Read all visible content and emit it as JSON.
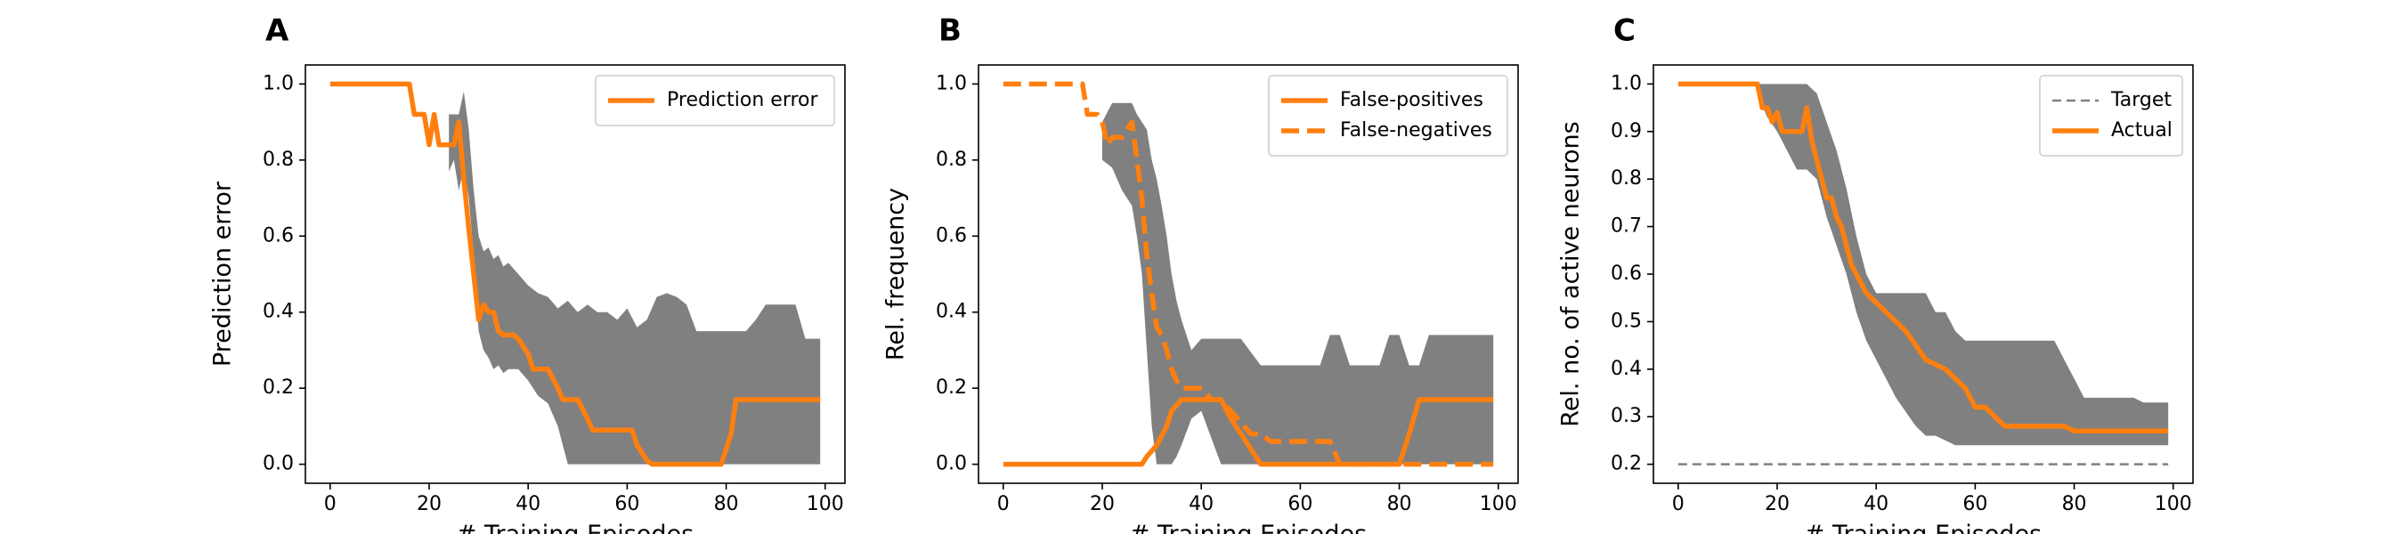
{
  "colors": {
    "line": "#ff7f0e",
    "band": "#808080",
    "target": "#808080",
    "axis": "#000000"
  },
  "chart_data": [
    {
      "panel_letter": "A",
      "type": "line",
      "xlabel": "# Training Episodes",
      "ylabel": "Prediction error",
      "xlim": [
        -5,
        104
      ],
      "ylim": [
        -0.05,
        1.05
      ],
      "xticks": [
        0,
        20,
        40,
        60,
        80,
        100
      ],
      "xtick_labels": [
        "0",
        "20",
        "40",
        "60",
        "80",
        "100"
      ],
      "yticks": [
        0.0,
        0.2,
        0.4,
        0.6,
        0.8,
        1.0
      ],
      "ytick_labels": [
        "0.0",
        "0.2",
        "0.4",
        "0.6",
        "0.8",
        "1.0"
      ],
      "grid": false,
      "legend": {
        "placement": "top-right",
        "entries": [
          {
            "label": "Prediction error",
            "style": "solid"
          }
        ]
      },
      "band": {
        "x": [
          24,
          25,
          26,
          27,
          28,
          29,
          30,
          31,
          32,
          33,
          34,
          35,
          36,
          38,
          40,
          42,
          44,
          46,
          48,
          50,
          52,
          54,
          56,
          58,
          60,
          62,
          64,
          66,
          68,
          70,
          72,
          74,
          76,
          78,
          80,
          82,
          84,
          86,
          88,
          90,
          92,
          94,
          96,
          98,
          99
        ],
        "upper": [
          0.92,
          0.92,
          0.92,
          0.98,
          0.88,
          0.72,
          0.6,
          0.56,
          0.57,
          0.54,
          0.55,
          0.52,
          0.53,
          0.5,
          0.47,
          0.45,
          0.44,
          0.41,
          0.43,
          0.4,
          0.42,
          0.4,
          0.4,
          0.38,
          0.41,
          0.36,
          0.38,
          0.44,
          0.45,
          0.44,
          0.42,
          0.35,
          0.35,
          0.35,
          0.35,
          0.35,
          0.35,
          0.38,
          0.42,
          0.42,
          0.42,
          0.42,
          0.33,
          0.33,
          0.33
        ],
        "lower": [
          0.77,
          0.8,
          0.72,
          0.78,
          0.7,
          0.55,
          0.35,
          0.3,
          0.28,
          0.25,
          0.26,
          0.24,
          0.25,
          0.25,
          0.22,
          0.18,
          0.16,
          0.1,
          0.0,
          0.0,
          0.0,
          0.0,
          0.0,
          0.0,
          0.0,
          0.0,
          0.0,
          0.0,
          0.0,
          0.0,
          0.0,
          0.0,
          0.0,
          0.0,
          0.0,
          0.0,
          0.0,
          0.0,
          0.0,
          0.0,
          0.0,
          0.0,
          0.0,
          0.0,
          0.0
        ]
      },
      "series": [
        {
          "name": "Prediction error",
          "style": "solid",
          "x": [
            0,
            16,
            17,
            19,
            20,
            21,
            22,
            23,
            24,
            25,
            26,
            27,
            28,
            29,
            30,
            31,
            32,
            33,
            34,
            35,
            36,
            37,
            38,
            40,
            41,
            43,
            44,
            46,
            47,
            49,
            50,
            52,
            53,
            55,
            56,
            58,
            59,
            61,
            62,
            64,
            65,
            67,
            68,
            70,
            72,
            74,
            76,
            78,
            79,
            81,
            82,
            84,
            86,
            88,
            90,
            92,
            94,
            96,
            98,
            99
          ],
          "y": [
            1.0,
            1.0,
            0.92,
            0.92,
            0.84,
            0.92,
            0.84,
            0.84,
            0.84,
            0.84,
            0.9,
            0.75,
            0.62,
            0.5,
            0.38,
            0.42,
            0.4,
            0.4,
            0.35,
            0.34,
            0.34,
            0.34,
            0.33,
            0.29,
            0.25,
            0.25,
            0.25,
            0.2,
            0.17,
            0.17,
            0.17,
            0.12,
            0.09,
            0.09,
            0.09,
            0.09,
            0.09,
            0.09,
            0.05,
            0.01,
            0.0,
            0.0,
            0.0,
            0.0,
            0.0,
            0.0,
            0.0,
            0.0,
            0.0,
            0.08,
            0.17,
            0.17,
            0.17,
            0.17,
            0.17,
            0.17,
            0.17,
            0.17,
            0.17,
            0.17
          ]
        }
      ]
    },
    {
      "panel_letter": "B",
      "type": "line",
      "xlabel": "# Training Episodes",
      "ylabel": "Rel. frequency",
      "xlim": [
        -5,
        104
      ],
      "ylim": [
        -0.05,
        1.05
      ],
      "xticks": [
        0,
        20,
        40,
        60,
        80,
        100
      ],
      "xtick_labels": [
        "0",
        "20",
        "40",
        "60",
        "80",
        "100"
      ],
      "yticks": [
        0.0,
        0.2,
        0.4,
        0.6,
        0.8,
        1.0
      ],
      "ytick_labels": [
        "0.0",
        "0.2",
        "0.4",
        "0.6",
        "0.8",
        "1.0"
      ],
      "grid": false,
      "legend": {
        "placement": "top-right",
        "entries": [
          {
            "label": "False-positives",
            "style": "solid"
          },
          {
            "label": "False-negatives",
            "style": "dashed"
          }
        ]
      },
      "band": {
        "x": [
          20,
          22,
          24,
          26,
          27,
          28,
          29,
          30,
          31,
          32,
          33,
          34,
          35,
          36,
          38,
          40,
          44,
          48,
          52,
          56,
          60,
          64,
          66,
          68,
          70,
          72,
          74,
          76,
          78,
          80,
          82,
          84,
          86,
          88,
          90,
          92,
          94,
          96,
          98,
          99
        ],
        "upper": [
          0.9,
          0.95,
          0.95,
          0.95,
          0.92,
          0.9,
          0.88,
          0.8,
          0.75,
          0.68,
          0.6,
          0.5,
          0.43,
          0.38,
          0.3,
          0.33,
          0.33,
          0.33,
          0.26,
          0.26,
          0.26,
          0.26,
          0.34,
          0.34,
          0.26,
          0.26,
          0.26,
          0.26,
          0.34,
          0.34,
          0.26,
          0.26,
          0.34,
          0.34,
          0.34,
          0.34,
          0.34,
          0.34,
          0.34,
          0.34
        ],
        "lower": [
          0.8,
          0.78,
          0.72,
          0.68,
          0.6,
          0.5,
          0.3,
          0.1,
          0.0,
          0.0,
          0.0,
          0.0,
          0.02,
          0.05,
          0.12,
          0.14,
          0.0,
          0.0,
          0.0,
          0.0,
          0.0,
          0.0,
          0.0,
          0.0,
          0.0,
          0.0,
          0.0,
          0.0,
          0.0,
          0.0,
          0.0,
          0.0,
          0.0,
          0.0,
          0.0,
          0.0,
          0.0,
          0.0,
          0.0,
          0.0
        ]
      },
      "series": [
        {
          "name": "False-positives",
          "style": "solid",
          "x": [
            0,
            28,
            29,
            31,
            33,
            34,
            36,
            38,
            39,
            41,
            43,
            44,
            46,
            48,
            50,
            52,
            54,
            56,
            58,
            60,
            62,
            64,
            66,
            68,
            70,
            72,
            74,
            76,
            78,
            80,
            82,
            84,
            86,
            88,
            90,
            92,
            94,
            96,
            98,
            99
          ],
          "y": [
            0.0,
            0.0,
            0.02,
            0.05,
            0.1,
            0.14,
            0.17,
            0.17,
            0.17,
            0.17,
            0.17,
            0.17,
            0.12,
            0.08,
            0.04,
            0.0,
            0.0,
            0.0,
            0.0,
            0.0,
            0.0,
            0.0,
            0.0,
            0.0,
            0.0,
            0.0,
            0.0,
            0.0,
            0.0,
            0.0,
            0.08,
            0.17,
            0.17,
            0.17,
            0.17,
            0.17,
            0.17,
            0.17,
            0.17,
            0.17
          ]
        },
        {
          "name": "False-negatives",
          "style": "dashed",
          "x": [
            0,
            16,
            17,
            19,
            20,
            21,
            22,
            23,
            24,
            25,
            26,
            27,
            28,
            29,
            30,
            31,
            32,
            33,
            34,
            35,
            36,
            37,
            38,
            40,
            42,
            44,
            46,
            48,
            50,
            52,
            54,
            56,
            58,
            60,
            62,
            64,
            66,
            68,
            70,
            72,
            74,
            76,
            78,
            80,
            82,
            84,
            86,
            88,
            90,
            92,
            94,
            96,
            98,
            99
          ],
          "y": [
            1.0,
            1.0,
            0.92,
            0.92,
            0.9,
            0.84,
            0.86,
            0.86,
            0.86,
            0.88,
            0.9,
            0.8,
            0.7,
            0.55,
            0.45,
            0.36,
            0.34,
            0.3,
            0.25,
            0.22,
            0.2,
            0.2,
            0.2,
            0.2,
            0.17,
            0.17,
            0.14,
            0.11,
            0.08,
            0.08,
            0.06,
            0.06,
            0.06,
            0.06,
            0.06,
            0.06,
            0.06,
            0.0,
            0.0,
            0.0,
            0.0,
            0.0,
            0.0,
            0.0,
            0.0,
            0.0,
            0.0,
            0.0,
            0.0,
            0.0,
            0.0,
            0.0,
            0.0,
            0.0
          ]
        }
      ]
    },
    {
      "panel_letter": "C",
      "type": "line",
      "xlabel": "# Training Episodes",
      "ylabel": "Rel. no. of active neurons",
      "xlim": [
        -5,
        104
      ],
      "ylim": [
        0.16,
        1.04
      ],
      "xticks": [
        0,
        20,
        40,
        60,
        80,
        100
      ],
      "xtick_labels": [
        "0",
        "20",
        "40",
        "60",
        "80",
        "100"
      ],
      "yticks": [
        0.2,
        0.3,
        0.4,
        0.5,
        0.6,
        0.7,
        0.8,
        0.9,
        1.0
      ],
      "ytick_labels": [
        "0.2",
        "0.3",
        "0.4",
        "0.5",
        "0.6",
        "0.7",
        "0.8",
        "0.9",
        "1.0"
      ],
      "grid": false,
      "legend": {
        "placement": "top-right",
        "entries": [
          {
            "label": "Target",
            "style": "target-dashed"
          },
          {
            "label": "Actual",
            "style": "solid"
          }
        ]
      },
      "band": {
        "x": [
          16,
          18,
          20,
          22,
          24,
          26,
          28,
          29,
          30,
          32,
          34,
          36,
          38,
          40,
          42,
          44,
          46,
          48,
          50,
          52,
          54,
          56,
          58,
          60,
          62,
          64,
          66,
          68,
          70,
          72,
          74,
          76,
          78,
          80,
          82,
          84,
          86,
          88,
          90,
          92,
          94,
          96,
          98,
          99
        ],
        "upper": [
          1.0,
          1.0,
          1.0,
          1.0,
          1.0,
          1.0,
          0.98,
          0.95,
          0.92,
          0.86,
          0.78,
          0.68,
          0.6,
          0.56,
          0.56,
          0.56,
          0.56,
          0.56,
          0.56,
          0.52,
          0.52,
          0.48,
          0.46,
          0.46,
          0.46,
          0.46,
          0.46,
          0.46,
          0.46,
          0.46,
          0.46,
          0.46,
          0.42,
          0.38,
          0.34,
          0.34,
          0.34,
          0.34,
          0.34,
          0.34,
          0.33,
          0.33,
          0.33,
          0.33
        ],
        "lower": [
          0.98,
          0.93,
          0.9,
          0.86,
          0.82,
          0.82,
          0.8,
          0.76,
          0.72,
          0.66,
          0.6,
          0.52,
          0.46,
          0.42,
          0.38,
          0.34,
          0.31,
          0.28,
          0.26,
          0.26,
          0.25,
          0.24,
          0.24,
          0.24,
          0.24,
          0.24,
          0.24,
          0.24,
          0.24,
          0.24,
          0.24,
          0.24,
          0.24,
          0.24,
          0.24,
          0.24,
          0.24,
          0.24,
          0.24,
          0.24,
          0.24,
          0.24,
          0.24,
          0.24
        ]
      },
      "series": [
        {
          "name": "Target",
          "style": "target-dashed",
          "x": [
            0,
            99
          ],
          "y": [
            0.2,
            0.2
          ]
        },
        {
          "name": "Actual",
          "style": "solid",
          "x": [
            0,
            16,
            17,
            18,
            19,
            20,
            21,
            22,
            23,
            24,
            25,
            26,
            27,
            28,
            29,
            30,
            31,
            32,
            33,
            34,
            35,
            36,
            37,
            38,
            40,
            42,
            44,
            46,
            48,
            50,
            52,
            54,
            56,
            58,
            60,
            62,
            64,
            66,
            68,
            70,
            72,
            74,
            76,
            78,
            80,
            82,
            84,
            86,
            88,
            90,
            92,
            94,
            96,
            98,
            99
          ],
          "y": [
            1.0,
            1.0,
            0.95,
            0.95,
            0.92,
            0.94,
            0.9,
            0.9,
            0.9,
            0.9,
            0.9,
            0.95,
            0.88,
            0.84,
            0.8,
            0.76,
            0.76,
            0.72,
            0.7,
            0.66,
            0.62,
            0.6,
            0.58,
            0.56,
            0.54,
            0.52,
            0.5,
            0.48,
            0.45,
            0.42,
            0.41,
            0.4,
            0.38,
            0.36,
            0.32,
            0.32,
            0.3,
            0.28,
            0.28,
            0.28,
            0.28,
            0.28,
            0.28,
            0.28,
            0.27,
            0.27,
            0.27,
            0.27,
            0.27,
            0.27,
            0.27,
            0.27,
            0.27,
            0.27,
            0.27
          ]
        }
      ]
    }
  ]
}
